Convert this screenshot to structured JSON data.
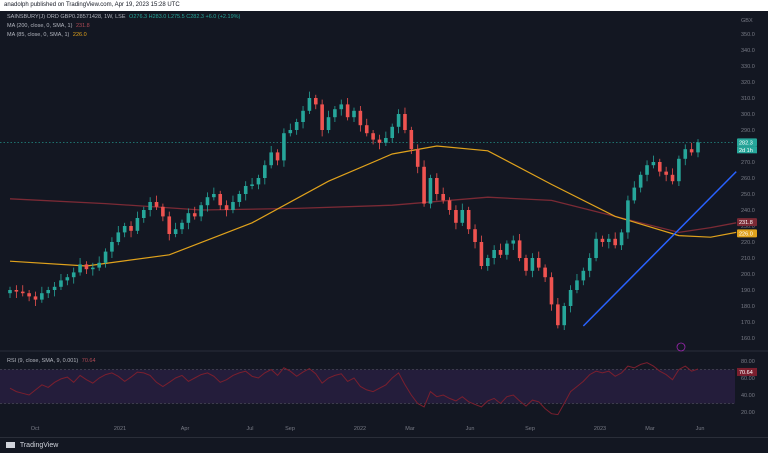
{
  "header": {
    "text": "anadolph published on TradingView.com, Apr 19, 2023 15:28 UTC"
  },
  "legend": {
    "main": {
      "label": "SAINSBURY(J) ORD GBP0.28571428, 1W, LSE",
      "ohlc": "O276.3 H283.0 L275.5 C282.3 +6.0 (+2.19%)"
    },
    "ma200": {
      "label": "MA (200, close, 0, SMA, 1)",
      "value": "231.8"
    },
    "ma85": {
      "label": "MA (85, close, 0, SMA, 1)",
      "value": "226.0"
    },
    "rsi": {
      "label": "RSI (9, close, SMA, 9, 0.001)",
      "value": "70.64"
    }
  },
  "footer": {
    "brand": "TradingView"
  },
  "colors": {
    "background": "#131722",
    "up": "#26a69a",
    "down": "#ef5350",
    "ma200": "#7b2a35",
    "ma85": "#e0a21c",
    "trendline": "#2962ff",
    "rsi": "#7b1f2e",
    "rsi_band": "#241d3b",
    "dotted": "#26a69a"
  },
  "chart_data": [
    {
      "type": "candlestick",
      "title": "SAINSBURY(J) ORD GBP0.28571428, 1W, LSE",
      "currency": "GBX",
      "y_ticks": [
        350,
        340,
        330,
        320,
        310,
        300,
        290,
        280,
        270,
        260,
        250,
        240,
        230,
        220,
        210,
        200,
        190,
        180,
        170,
        160
      ],
      "ylim": [
        155,
        355
      ],
      "x_ticks": [
        "Oct",
        "2021",
        "Apr",
        "Jul",
        "Sep",
        "2022",
        "Mar",
        "Jun",
        "Sep",
        "2023",
        "Mar",
        "Jun"
      ],
      "price_tags": {
        "last": "282.3",
        "countdown": "2d 1h",
        "ma200": "231.8",
        "ma85": "226.0"
      },
      "close_series": [
        190,
        189,
        188,
        186,
        184,
        188,
        190,
        192,
        196,
        198,
        201,
        206,
        203,
        204,
        207,
        214,
        220,
        226,
        230,
        227,
        235,
        240,
        245,
        242,
        236,
        225,
        228,
        232,
        238,
        236,
        243,
        248,
        250,
        243,
        240,
        245,
        250,
        255,
        256,
        260,
        268,
        276,
        271,
        288,
        290,
        295,
        302,
        310,
        306,
        290,
        298,
        303,
        306,
        298,
        302,
        293,
        288,
        284,
        282,
        285,
        292,
        300,
        290,
        278,
        267,
        244,
        260,
        250,
        246,
        240,
        232,
        240,
        228,
        220,
        205,
        210,
        215,
        212,
        219,
        221,
        210,
        202,
        210,
        204,
        198,
        181,
        168,
        180,
        190,
        196,
        202,
        210,
        222,
        220,
        222,
        218,
        226,
        246,
        254,
        262,
        268,
        270,
        264,
        262,
        258,
        272,
        278,
        276,
        282.3
      ],
      "candle_x_index_start": 0,
      "ma200_series": [
        [
          0,
          247
        ],
        [
          15,
          244
        ],
        [
          30,
          240
        ],
        [
          45,
          241
        ],
        [
          60,
          243
        ],
        [
          75,
          248
        ],
        [
          85,
          246
        ],
        [
          95,
          236
        ],
        [
          105,
          226
        ],
        [
          110,
          229
        ],
        [
          114,
          232
        ]
      ],
      "ma85_series": [
        [
          0,
          208
        ],
        [
          12,
          205
        ],
        [
          25,
          212
        ],
        [
          38,
          232
        ],
        [
          50,
          258
        ],
        [
          60,
          275
        ],
        [
          67,
          280
        ],
        [
          75,
          277
        ],
        [
          85,
          256
        ],
        [
          95,
          236
        ],
        [
          105,
          224
        ],
        [
          110,
          223
        ],
        [
          114,
          226
        ]
      ],
      "trendline": [
        [
          90,
          167.5
        ],
        [
          114,
          264
        ]
      ]
    },
    {
      "type": "line",
      "title": "RSI (9, close, SMA, 9, 0.001)",
      "y_ticks": [
        80,
        70.64,
        60,
        40,
        20
      ],
      "band": [
        30,
        70
      ],
      "ylim": [
        10,
        85
      ],
      "values": [
        48,
        44,
        42,
        40,
        46,
        52,
        49,
        55,
        59,
        61,
        55,
        63,
        58,
        54,
        60,
        64,
        66,
        62,
        56,
        61,
        67,
        66,
        63,
        55,
        50,
        55,
        60,
        63,
        56,
        60,
        64,
        66,
        62,
        55,
        58,
        63,
        66,
        68,
        62,
        60,
        66,
        70,
        63,
        72,
        68,
        62,
        67,
        71,
        65,
        54,
        60,
        63,
        65,
        56,
        60,
        50,
        46,
        44,
        48,
        52,
        60,
        66,
        52,
        40,
        30,
        26,
        44,
        38,
        40,
        36,
        33,
        38,
        32,
        29,
        26,
        33,
        36,
        30,
        38,
        40,
        33,
        27,
        34,
        32,
        24,
        18,
        17,
        30,
        44,
        50,
        56,
        64,
        68,
        66,
        68,
        62,
        66,
        74,
        72,
        76,
        78,
        74,
        68,
        64,
        58,
        70,
        74,
        68,
        70.64
      ]
    }
  ]
}
